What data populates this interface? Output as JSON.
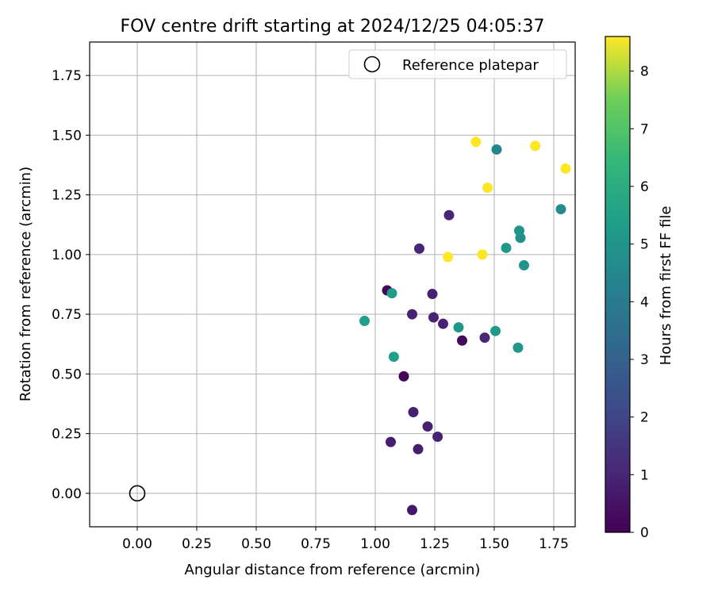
{
  "chart_data": {
    "type": "scatter",
    "title": "FOV centre drift starting at 2024/12/25 04:05:37",
    "xlabel": "Angular distance from reference (arcmin)",
    "ylabel": "Rotation from reference (arcmin)",
    "xlim": [
      -0.2,
      1.84
    ],
    "ylim": [
      -0.14,
      1.89
    ],
    "xticks": [
      0.0,
      0.25,
      0.5,
      0.75,
      1.0,
      1.25,
      1.5,
      1.75
    ],
    "xtick_labels": [
      "0.00",
      "0.25",
      "0.50",
      "0.75",
      "1.00",
      "1.25",
      "1.50",
      "1.75"
    ],
    "yticks": [
      0.0,
      0.25,
      0.5,
      0.75,
      1.0,
      1.25,
      1.5,
      1.75
    ],
    "ytick_labels": [
      "0.00",
      "0.25",
      "0.50",
      "0.75",
      "1.00",
      "1.25",
      "1.50",
      "1.75"
    ],
    "grid": true,
    "legend": {
      "placement": "top-right",
      "entries": [
        "Reference platepar"
      ]
    },
    "reference_point": {
      "x": 0.0,
      "y": 0.0,
      "label": "Reference platepar"
    },
    "colorbar": {
      "label": "Hours from first FF file",
      "colormap": "viridis",
      "range": [
        0,
        8.6
      ],
      "ticks": [
        0,
        1,
        2,
        3,
        4,
        5,
        6,
        7,
        8
      ],
      "tick_labels": [
        "0",
        "1",
        "2",
        "3",
        "4",
        "5",
        "6",
        "7",
        "8"
      ]
    },
    "points": [
      {
        "x": 1.05,
        "y": 0.85,
        "hours": 0.05
      },
      {
        "x": 1.12,
        "y": 0.49,
        "hours": 0.1
      },
      {
        "x": 1.365,
        "y": 0.64,
        "hours": 0.2
      },
      {
        "x": 1.155,
        "y": -0.07,
        "hours": 0.6
      },
      {
        "x": 1.065,
        "y": 0.215,
        "hours": 0.8
      },
      {
        "x": 1.18,
        "y": 0.185,
        "hours": 0.8
      },
      {
        "x": 1.22,
        "y": 0.28,
        "hours": 0.85
      },
      {
        "x": 1.262,
        "y": 0.237,
        "hours": 0.9
      },
      {
        "x": 1.16,
        "y": 0.34,
        "hours": 0.85
      },
      {
        "x": 1.155,
        "y": 0.75,
        "hours": 0.9
      },
      {
        "x": 1.24,
        "y": 0.835,
        "hours": 0.9
      },
      {
        "x": 1.245,
        "y": 0.737,
        "hours": 0.95
      },
      {
        "x": 1.285,
        "y": 0.71,
        "hours": 0.95
      },
      {
        "x": 1.185,
        "y": 1.025,
        "hours": 1.0
      },
      {
        "x": 1.31,
        "y": 1.165,
        "hours": 1.0
      },
      {
        "x": 1.46,
        "y": 0.652,
        "hours": 1.1
      },
      {
        "x": 1.51,
        "y": 1.44,
        "hours": 4.4
      },
      {
        "x": 1.78,
        "y": 1.19,
        "hours": 4.6
      },
      {
        "x": 1.61,
        "y": 1.07,
        "hours": 4.8
      },
      {
        "x": 1.605,
        "y": 1.1,
        "hours": 5.0
      },
      {
        "x": 1.625,
        "y": 0.955,
        "hours": 5.0
      },
      {
        "x": 1.55,
        "y": 1.028,
        "hours": 5.2
      },
      {
        "x": 1.35,
        "y": 0.695,
        "hours": 5.1
      },
      {
        "x": 1.505,
        "y": 0.68,
        "hours": 5.2
      },
      {
        "x": 1.6,
        "y": 0.61,
        "hours": 5.1
      },
      {
        "x": 1.07,
        "y": 0.838,
        "hours": 5.3
      },
      {
        "x": 1.078,
        "y": 0.572,
        "hours": 5.4
      },
      {
        "x": 0.955,
        "y": 0.722,
        "hours": 5.4
      },
      {
        "x": 1.423,
        "y": 1.472,
        "hours": 8.6
      },
      {
        "x": 1.672,
        "y": 1.455,
        "hours": 8.6
      },
      {
        "x": 1.8,
        "y": 1.36,
        "hours": 8.6
      },
      {
        "x": 1.472,
        "y": 1.28,
        "hours": 8.6
      },
      {
        "x": 1.305,
        "y": 0.99,
        "hours": 8.6
      },
      {
        "x": 1.45,
        "y": 1.0,
        "hours": 8.6
      }
    ]
  }
}
